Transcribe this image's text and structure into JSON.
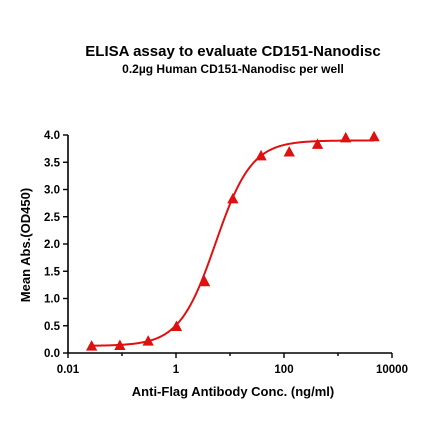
{
  "chart_data": {
    "type": "scatter",
    "title": "ELISA assay to evaluate CD151-Nanodisc",
    "subtitle": "0.2µg Human CD151-Nanodisc per well",
    "xlabel": "Anti-Flag Antibody Conc. (ng/ml)",
    "ylabel": "Mean Abs.(OD450)",
    "x_scale": "log",
    "xlim": [
      0.01,
      10000
    ],
    "ylim": [
      0.0,
      4.0
    ],
    "x_ticks": [
      "0.01",
      "1",
      "100",
      "10000"
    ],
    "y_ticks": [
      "0.0",
      "0.5",
      "1.0",
      "1.5",
      "2.0",
      "2.5",
      "3.0",
      "3.5",
      "4.0"
    ],
    "grid": false,
    "color": "#e01010",
    "marker": "triangle",
    "fit": "4-parameter logistic curve",
    "points": [
      {
        "x": 0.0274,
        "y": 0.13
      },
      {
        "x": 0.0914,
        "y": 0.14
      },
      {
        "x": 0.305,
        "y": 0.22
      },
      {
        "x": 1.02,
        "y": 0.49
      },
      {
        "x": 3.39,
        "y": 1.31
      },
      {
        "x": 11.3,
        "y": 2.83
      },
      {
        "x": 37.6,
        "y": 3.62
      },
      {
        "x": 125,
        "y": 3.69
      },
      {
        "x": 418,
        "y": 3.83
      },
      {
        "x": 1390,
        "y": 3.95
      },
      {
        "x": 4650,
        "y": 3.97
      }
    ]
  }
}
